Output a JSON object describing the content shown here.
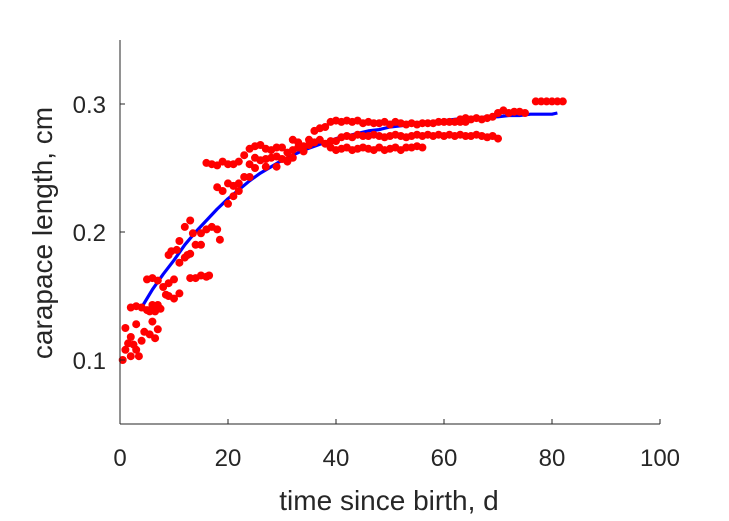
{
  "chart_data": {
    "type": "scatter",
    "title": "",
    "xlabel": "time since birth, d",
    "ylabel": "carapace length, cm",
    "xlim": [
      0,
      100
    ],
    "ylim": [
      0.05,
      0.35
    ],
    "xticks": [
      0,
      20,
      40,
      60,
      80,
      100
    ],
    "xtick_labels": [
      "0",
      "20",
      "40",
      "60",
      "80",
      "100"
    ],
    "yticks": [
      0.1,
      0.2,
      0.3
    ],
    "ytick_labels": [
      "0.1",
      "0.2",
      "0.3"
    ],
    "grid": false,
    "box": "left-bottom axes only",
    "series": [
      {
        "kind": "points",
        "color": "#ff0000",
        "points": [
          [
            0.5,
            0.1
          ],
          [
            1.0,
            0.108
          ],
          [
            1.5,
            0.113
          ],
          [
            2.0,
            0.103
          ],
          [
            2.5,
            0.112
          ],
          [
            3.0,
            0.108
          ],
          [
            3.5,
            0.103
          ],
          [
            4.0,
            0.115
          ],
          [
            1.0,
            0.125
          ],
          [
            2.0,
            0.118
          ],
          [
            3.0,
            0.128
          ],
          [
            4.5,
            0.122
          ],
          [
            2.0,
            0.141
          ],
          [
            3.0,
            0.142
          ],
          [
            4.0,
            0.141
          ],
          [
            5.0,
            0.139
          ],
          [
            5.5,
            0.138
          ],
          [
            6.0,
            0.143
          ],
          [
            6.5,
            0.138
          ],
          [
            7.0,
            0.143
          ],
          [
            7.5,
            0.14
          ],
          [
            6.0,
            0.13
          ],
          [
            7.0,
            0.124
          ],
          [
            5.5,
            0.12
          ],
          [
            6.5,
            0.117
          ],
          [
            5.0,
            0.163
          ],
          [
            6.0,
            0.164
          ],
          [
            7.0,
            0.162
          ],
          [
            8.0,
            0.157
          ],
          [
            8.5,
            0.151
          ],
          [
            9.0,
            0.15
          ],
          [
            10.0,
            0.148
          ],
          [
            11.0,
            0.152
          ],
          [
            9.0,
            0.16
          ],
          [
            10.0,
            0.163
          ],
          [
            9.0,
            0.182
          ],
          [
            9.5,
            0.185
          ],
          [
            10.5,
            0.186
          ],
          [
            11.0,
            0.176
          ],
          [
            12.0,
            0.18
          ],
          [
            12.5,
            0.182
          ],
          [
            13.0,
            0.183
          ],
          [
            11.0,
            0.193
          ],
          [
            12.0,
            0.204
          ],
          [
            13.0,
            0.209
          ],
          [
            13.5,
            0.199
          ],
          [
            14.0,
            0.19
          ],
          [
            15.0,
            0.19
          ],
          [
            13.0,
            0.164
          ],
          [
            14.0,
            0.164
          ],
          [
            15.0,
            0.166
          ],
          [
            16.0,
            0.165
          ],
          [
            16.5,
            0.166
          ],
          [
            15.0,
            0.199
          ],
          [
            16.0,
            0.202
          ],
          [
            17.0,
            0.204
          ],
          [
            18.0,
            0.202
          ],
          [
            18.5,
            0.194
          ],
          [
            16.0,
            0.254
          ],
          [
            17.0,
            0.253
          ],
          [
            18.0,
            0.252
          ],
          [
            19.0,
            0.255
          ],
          [
            20.0,
            0.253
          ],
          [
            21.0,
            0.253
          ],
          [
            22.0,
            0.255
          ],
          [
            18.0,
            0.235
          ],
          [
            19.0,
            0.232
          ],
          [
            20.0,
            0.238
          ],
          [
            21.0,
            0.236
          ],
          [
            22.0,
            0.232
          ],
          [
            20.0,
            0.222
          ],
          [
            21.0,
            0.228
          ],
          [
            22.0,
            0.238
          ],
          [
            23.0,
            0.243
          ],
          [
            24.0,
            0.243
          ],
          [
            23.0,
            0.26
          ],
          [
            24.0,
            0.265
          ],
          [
            25.0,
            0.267
          ],
          [
            26.0,
            0.268
          ],
          [
            27.0,
            0.265
          ],
          [
            28.0,
            0.264
          ],
          [
            29.0,
            0.266
          ],
          [
            30.0,
            0.266
          ],
          [
            24.0,
            0.253
          ],
          [
            25.0,
            0.258
          ],
          [
            26.0,
            0.256
          ],
          [
            27.0,
            0.257
          ],
          [
            28.0,
            0.258
          ],
          [
            29.0,
            0.259
          ],
          [
            30.0,
            0.257
          ],
          [
            31.0,
            0.256
          ],
          [
            32.0,
            0.258
          ],
          [
            25.0,
            0.25
          ],
          [
            27.0,
            0.251
          ],
          [
            29.0,
            0.251
          ],
          [
            31.0,
            0.255
          ],
          [
            32.0,
            0.272
          ],
          [
            33.0,
            0.27
          ],
          [
            34.0,
            0.267
          ],
          [
            35.0,
            0.272
          ],
          [
            31.0,
            0.262
          ],
          [
            32.0,
            0.264
          ],
          [
            33.0,
            0.266
          ],
          [
            34.0,
            0.263
          ],
          [
            35.0,
            0.268
          ],
          [
            36.0,
            0.279
          ],
          [
            37.0,
            0.281
          ],
          [
            38.0,
            0.282
          ],
          [
            36.0,
            0.27
          ],
          [
            37.0,
            0.272
          ],
          [
            38.0,
            0.269
          ],
          [
            39.0,
            0.271
          ],
          [
            39.0,
            0.286
          ],
          [
            40.0,
            0.287
          ],
          [
            41.0,
            0.286
          ],
          [
            42.0,
            0.287
          ],
          [
            43.0,
            0.286
          ],
          [
            44.0,
            0.287
          ],
          [
            45.0,
            0.285
          ],
          [
            46.0,
            0.286
          ],
          [
            47.0,
            0.285
          ],
          [
            48.0,
            0.285
          ],
          [
            49.0,
            0.286
          ],
          [
            50.0,
            0.284
          ],
          [
            51.0,
            0.286
          ],
          [
            52.0,
            0.285
          ],
          [
            53.0,
            0.284
          ],
          [
            54.0,
            0.285
          ],
          [
            55.0,
            0.284
          ],
          [
            56.0,
            0.285
          ],
          [
            57.0,
            0.285
          ],
          [
            58.0,
            0.285
          ],
          [
            59.0,
            0.286
          ],
          [
            60.0,
            0.286
          ],
          [
            61.0,
            0.286
          ],
          [
            62.0,
            0.286
          ],
          [
            63.0,
            0.286
          ],
          [
            64.0,
            0.286
          ],
          [
            40.0,
            0.271
          ],
          [
            41.0,
            0.274
          ],
          [
            42.0,
            0.275
          ],
          [
            43.0,
            0.274
          ],
          [
            44.0,
            0.276
          ],
          [
            45.0,
            0.275
          ],
          [
            46.0,
            0.275
          ],
          [
            47.0,
            0.276
          ],
          [
            48.0,
            0.275
          ],
          [
            49.0,
            0.274
          ],
          [
            50.0,
            0.275
          ],
          [
            51.0,
            0.276
          ],
          [
            52.0,
            0.275
          ],
          [
            53.0,
            0.274
          ],
          [
            54.0,
            0.275
          ],
          [
            55.0,
            0.276
          ],
          [
            56.0,
            0.275
          ],
          [
            57.0,
            0.276
          ],
          [
            58.0,
            0.275
          ],
          [
            59.0,
            0.276
          ],
          [
            60.0,
            0.275
          ],
          [
            61.0,
            0.276
          ],
          [
            62.0,
            0.275
          ],
          [
            63.0,
            0.276
          ],
          [
            64.0,
            0.275
          ],
          [
            65.0,
            0.275
          ],
          [
            66.0,
            0.276
          ],
          [
            67.0,
            0.275
          ],
          [
            68.0,
            0.274
          ],
          [
            69.0,
            0.275
          ],
          [
            70.0,
            0.273
          ],
          [
            39.0,
            0.266
          ],
          [
            40.0,
            0.264
          ],
          [
            41.0,
            0.265
          ],
          [
            42.0,
            0.266
          ],
          [
            43.0,
            0.264
          ],
          [
            44.0,
            0.265
          ],
          [
            45.0,
            0.266
          ],
          [
            46.0,
            0.265
          ],
          [
            47.0,
            0.264
          ],
          [
            48.0,
            0.266
          ],
          [
            49.0,
            0.264
          ],
          [
            50.0,
            0.265
          ],
          [
            51.0,
            0.266
          ],
          [
            52.0,
            0.264
          ],
          [
            53.0,
            0.266
          ],
          [
            54.0,
            0.266
          ],
          [
            55.0,
            0.267
          ],
          [
            56.0,
            0.266
          ],
          [
            63.0,
            0.288
          ],
          [
            64.0,
            0.289
          ],
          [
            65.0,
            0.288
          ],
          [
            66.0,
            0.289
          ],
          [
            67.0,
            0.288
          ],
          [
            68.0,
            0.289
          ],
          [
            69.0,
            0.29
          ],
          [
            70.0,
            0.293
          ],
          [
            71.0,
            0.295
          ],
          [
            72.0,
            0.293
          ],
          [
            73.0,
            0.294
          ],
          [
            74.0,
            0.294
          ],
          [
            75.0,
            0.293
          ],
          [
            77.0,
            0.302
          ],
          [
            78.0,
            0.302
          ],
          [
            79.0,
            0.302
          ],
          [
            80.0,
            0.302
          ],
          [
            81.0,
            0.302
          ],
          [
            82.0,
            0.302
          ]
        ]
      },
      {
        "kind": "line",
        "color": "#0000ff",
        "x": [
          4,
          6,
          8,
          10,
          12,
          14,
          16,
          18,
          20,
          22,
          24,
          26,
          28,
          30,
          32,
          34,
          36,
          38,
          40,
          42,
          44,
          46,
          48,
          50,
          52,
          54,
          56,
          58,
          60,
          62,
          64,
          66,
          68,
          70,
          72,
          74,
          76,
          78,
          80,
          81
        ],
        "y": [
          0.141,
          0.155,
          0.167,
          0.178,
          0.19,
          0.2,
          0.209,
          0.218,
          0.226,
          0.233,
          0.24,
          0.246,
          0.251,
          0.256,
          0.26,
          0.264,
          0.267,
          0.27,
          0.273,
          0.275,
          0.277,
          0.279,
          0.28,
          0.282,
          0.283,
          0.284,
          0.285,
          0.286,
          0.287,
          0.288,
          0.289,
          0.289,
          0.29,
          0.29,
          0.291,
          0.291,
          0.292,
          0.292,
          0.292,
          0.293
        ]
      }
    ]
  }
}
